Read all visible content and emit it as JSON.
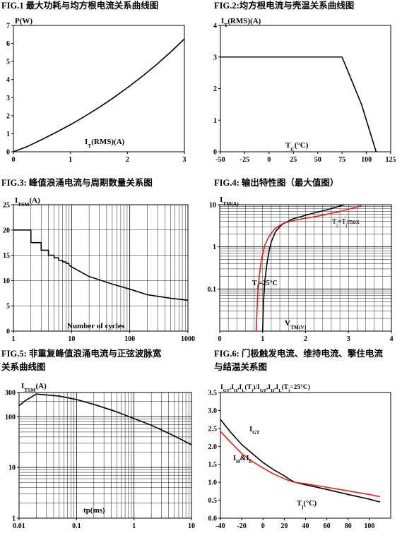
{
  "captions": {
    "fig1": "FIG.1  最大功耗与均方根电流关系曲线图",
    "fig2": "FIG.2:均方根电流与壳温关系曲线图",
    "fig3": "FIG.3:  峰值浪涌电流与周期数量关系图",
    "fig4": "FIG.4:  输出特性图（最大值图）",
    "fig5_line1": "FIG.5:  非重复峰值浪涌电流与正弦波脉宽",
    "fig5_line2": "关系曲线图",
    "fig6_line1": "FIG.6:  门极触发电流、维持电流、擎住电流",
    "fig6_line2": "与结温关系图"
  },
  "chart_data": [
    {
      "id": "fig1",
      "type": "line",
      "ylabel": "P(W)",
      "xlabel": "I_T(RMS)(A)",
      "xlim": [
        0,
        3
      ],
      "ylim": [
        0,
        7
      ],
      "xticks": [
        0,
        1,
        2,
        3
      ],
      "yticks": [
        0,
        1,
        2,
        3,
        4,
        5,
        6,
        7
      ],
      "grid": false,
      "series": [
        {
          "color": "#000000",
          "x": [
            0,
            0.25,
            0.5,
            0.75,
            1.0,
            1.25,
            1.5,
            1.75,
            2.0,
            2.25,
            2.5,
            2.75,
            3.0
          ],
          "y": [
            0,
            0.3,
            0.68,
            1.08,
            1.5,
            1.96,
            2.45,
            2.98,
            3.55,
            4.15,
            4.8,
            5.5,
            6.25
          ]
        }
      ]
    },
    {
      "id": "fig2",
      "type": "line",
      "ylabel": "I_T(RMS)(A)",
      "xlabel": "T_C(°C)",
      "xlim": [
        -50,
        125
      ],
      "ylim": [
        0,
        4
      ],
      "xticks": [
        -50,
        -25,
        0,
        25,
        50,
        75,
        100,
        125
      ],
      "yticks": [
        0,
        1,
        2,
        3,
        4
      ],
      "grid": false,
      "series": [
        {
          "color": "#000000",
          "x": [
            -50,
            75,
            95,
            110
          ],
          "y": [
            3,
            3,
            1.5,
            0
          ]
        }
      ]
    },
    {
      "id": "fig3",
      "type": "line",
      "xscale": "log",
      "ylabel": "I_TSM(A)",
      "xlabel": "Number of cycles",
      "xlim": [
        1,
        1000
      ],
      "ylim": [
        0,
        25
      ],
      "xticks": [
        1,
        10,
        100,
        1000
      ],
      "yticks": [
        0,
        5,
        10,
        15,
        20,
        25
      ],
      "grid": true,
      "series": [
        {
          "color": "#000000",
          "x": [
            1,
            2,
            2,
            3,
            3,
            4,
            4,
            5,
            5,
            6,
            6,
            7,
            7,
            8,
            8,
            9,
            9,
            10,
            20,
            50,
            100,
            200,
            500,
            1000
          ],
          "y": [
            20,
            20,
            17.5,
            17.5,
            16,
            16,
            15,
            15,
            14.5,
            14.5,
            14,
            14,
            13.7,
            13.7,
            13.4,
            13.4,
            13.1,
            12.7,
            10.8,
            9.3,
            8.3,
            7.2,
            6.5,
            6.1
          ]
        }
      ]
    },
    {
      "id": "fig4",
      "type": "line",
      "yscale": "log",
      "ylabel": "I_TM(A)",
      "xlabel": "V_TM(V)",
      "xlim": [
        0,
        4
      ],
      "ylim": [
        0.01,
        10
      ],
      "xticks": [
        0,
        1,
        2,
        3,
        4
      ],
      "yticks": [
        0.1,
        1,
        10
      ],
      "grid": true,
      "annotations": [
        "Tj=Tjmax",
        "Tj=25°C"
      ],
      "series": [
        {
          "name": "Tj=25°C",
          "color": "#000000",
          "x": [
            1.0,
            1.02,
            1.05,
            1.1,
            1.15,
            1.2,
            1.3,
            1.45,
            1.7,
            2.1,
            2.5,
            2.9
          ],
          "y": [
            0.01,
            0.05,
            0.15,
            0.4,
            0.8,
            1.3,
            2.3,
            3.4,
            4.6,
            6.0,
            7.6,
            10
          ]
        },
        {
          "name": "Tj=Tjmax",
          "color": "#e8201c",
          "x": [
            0.85,
            0.88,
            0.92,
            0.97,
            1.05,
            1.15,
            1.3,
            1.5,
            1.8,
            2.3,
            2.8,
            3.3
          ],
          "y": [
            0.01,
            0.06,
            0.2,
            0.5,
            1.1,
            1.8,
            2.8,
            3.7,
            4.4,
            5.4,
            6.9,
            9.5
          ]
        }
      ]
    },
    {
      "id": "fig5",
      "type": "line",
      "xscale": "log",
      "yscale": "log",
      "ylabel": "I_TSM(A)",
      "xlabel": "tp(ms)",
      "xlim": [
        0.01,
        10
      ],
      "ylim": [
        1,
        300
      ],
      "xticks": [
        0.01,
        0.1,
        1,
        10
      ],
      "yticks": [
        1,
        10,
        100,
        300
      ],
      "grid": true,
      "series": [
        {
          "color": "#000000",
          "x": [
            0.01,
            0.013,
            0.02,
            0.05,
            0.1,
            0.2,
            0.5,
            1,
            2,
            5,
            10
          ],
          "y": [
            165,
            210,
            280,
            255,
            218,
            175,
            125,
            92,
            68,
            42,
            28
          ]
        }
      ]
    },
    {
      "id": "fig6",
      "type": "line",
      "ylabel": "I_GT,I_H,I_L(T_j)/I_GT,I_H,I_L(T_j=25°C)",
      "xlabel": "T_j(°C)",
      "xlim": [
        -40,
        120
      ],
      "ylim": [
        0,
        3.5
      ],
      "xticks": [
        -40,
        -20,
        0,
        20,
        40,
        60,
        80,
        100
      ],
      "yticks": [
        0,
        0.5,
        1.0,
        1.5,
        2.0,
        2.5,
        3.0,
        3.5
      ],
      "grid": false,
      "annotations": [
        "I_GT",
        "I_H&I_L"
      ],
      "series": [
        {
          "name": "I_GT",
          "color": "#000000",
          "x": [
            -40,
            -30,
            -20,
            -10,
            0,
            10,
            20,
            25,
            30,
            40,
            60,
            80,
            100,
            110
          ],
          "y": [
            2.75,
            2.38,
            2.05,
            1.8,
            1.55,
            1.35,
            1.18,
            1.08,
            1.0,
            0.93,
            0.8,
            0.66,
            0.53,
            0.45
          ]
        },
        {
          "name": "I_H&I_L",
          "color": "#e8201c",
          "x": [
            -40,
            -30,
            -20,
            -10,
            0,
            10,
            20,
            25,
            30,
            40,
            60,
            80,
            100,
            110
          ],
          "y": [
            2.42,
            2.1,
            1.8,
            1.58,
            1.4,
            1.23,
            1.1,
            1.04,
            1.0,
            0.96,
            0.86,
            0.76,
            0.66,
            0.6
          ]
        }
      ]
    }
  ]
}
